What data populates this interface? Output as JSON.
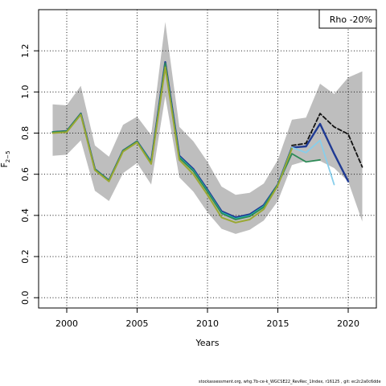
{
  "chart_data": {
    "type": "line",
    "title": "",
    "xlabel": "Years",
    "ylabel": "F",
    "ylabel_subscript": "2−5",
    "xlim": [
      1998,
      2022
    ],
    "ylim": [
      -0.05,
      1.4
    ],
    "xticks": [
      2000,
      2005,
      2010,
      2015,
      2020
    ],
    "yticks": [
      0.0,
      0.2,
      0.4,
      0.6,
      0.8,
      1.0,
      1.2
    ],
    "grid": true,
    "legend": "Rho -20%",
    "legend_position": "top-right",
    "band": {
      "x": [
        1999,
        2000,
        2001,
        2002,
        2003,
        2004,
        2005,
        2006,
        2007,
        2008,
        2009,
        2010,
        2011,
        2012,
        2013,
        2014,
        2015,
        2016,
        2017,
        2018,
        2019,
        2020,
        2021
      ],
      "upper": [
        0.94,
        0.935,
        1.03,
        0.74,
        0.685,
        0.84,
        0.88,
        0.79,
        1.34,
        0.83,
        0.76,
        0.66,
        0.54,
        0.5,
        0.51,
        0.555,
        0.67,
        0.865,
        0.875,
        1.04,
        0.99,
        1.07,
        1.1
      ],
      "lower": [
        0.69,
        0.695,
        0.765,
        0.52,
        0.47,
        0.605,
        0.655,
        0.55,
        0.98,
        0.585,
        0.515,
        0.415,
        0.335,
        0.31,
        0.33,
        0.375,
        0.47,
        0.645,
        0.665,
        0.665,
        0.63,
        0.565,
        0.37
      ]
    },
    "series": [
      {
        "color": "#1f3a93",
        "width": 2.4,
        "dash": "",
        "x": [
          1999,
          2000,
          2001,
          2002,
          2003,
          2004,
          2005,
          2006,
          2007,
          2008,
          2009,
          2010,
          2011,
          2012,
          2013,
          2014,
          2015,
          2016,
          2017,
          2018,
          2019,
          2020
        ],
        "values": [
          0.805,
          0.81,
          0.895,
          0.625,
          0.57,
          0.715,
          0.76,
          0.66,
          1.145,
          0.69,
          0.625,
          0.525,
          0.42,
          0.39,
          0.405,
          0.45,
          0.55,
          0.73,
          0.735,
          0.845,
          0.7,
          0.565
        ]
      },
      {
        "color": "#111111",
        "width": 1.8,
        "dash": "5,3",
        "x": [
          2016,
          2017,
          2018,
          2019,
          2020,
          2021
        ],
        "values": [
          0.74,
          0.75,
          0.895,
          0.83,
          0.795,
          0.635
        ]
      },
      {
        "color": "#27b0b0",
        "width": 1.6,
        "dash": "",
        "x": [
          1999,
          2000,
          2001,
          2002,
          2003,
          2004,
          2005,
          2006,
          2007,
          2008,
          2009,
          2010,
          2011,
          2012,
          2013,
          2014,
          2015,
          2016
        ],
        "values": [
          0.805,
          0.81,
          0.895,
          0.625,
          0.57,
          0.715,
          0.76,
          0.66,
          1.14,
          0.685,
          0.62,
          0.52,
          0.415,
          0.385,
          0.4,
          0.445,
          0.55,
          0.73
        ]
      },
      {
        "color": "#87ceeb",
        "width": 1.8,
        "dash": "",
        "x": [
          2016,
          2017,
          2018,
          2019
        ],
        "values": [
          0.73,
          0.705,
          0.765,
          0.55
        ]
      },
      {
        "color": "#2e8b57",
        "width": 1.8,
        "dash": "",
        "x": [
          1999,
          2000,
          2001,
          2002,
          2003,
          2004,
          2005,
          2006,
          2007,
          2008,
          2009,
          2010,
          2011,
          2012,
          2013,
          2014,
          2015,
          2016,
          2017,
          2018
        ],
        "values": [
          0.805,
          0.81,
          0.895,
          0.625,
          0.57,
          0.715,
          0.76,
          0.655,
          1.14,
          0.68,
          0.615,
          0.515,
          0.41,
          0.38,
          0.395,
          0.44,
          0.55,
          0.7,
          0.66,
          0.67
        ]
      },
      {
        "color": "#9aa832",
        "width": 2.0,
        "dash": "",
        "x": [
          1999,
          2000,
          2001,
          2002,
          2003,
          2004,
          2005,
          2006,
          2007,
          2008,
          2009,
          2010,
          2011,
          2012,
          2013,
          2014,
          2015,
          2016
        ],
        "values": [
          0.8,
          0.805,
          0.89,
          0.62,
          0.565,
          0.71,
          0.755,
          0.65,
          1.12,
          0.67,
          0.6,
          0.5,
          0.39,
          0.365,
          0.38,
          0.43,
          0.545,
          0.725
        ]
      }
    ]
  },
  "footer": {
    "text": "stockassessment.org, whg.7b-ce-k_WGCSE22_RevRec_1Index, r16125 ,  git: ec2c2a0c6dde"
  }
}
